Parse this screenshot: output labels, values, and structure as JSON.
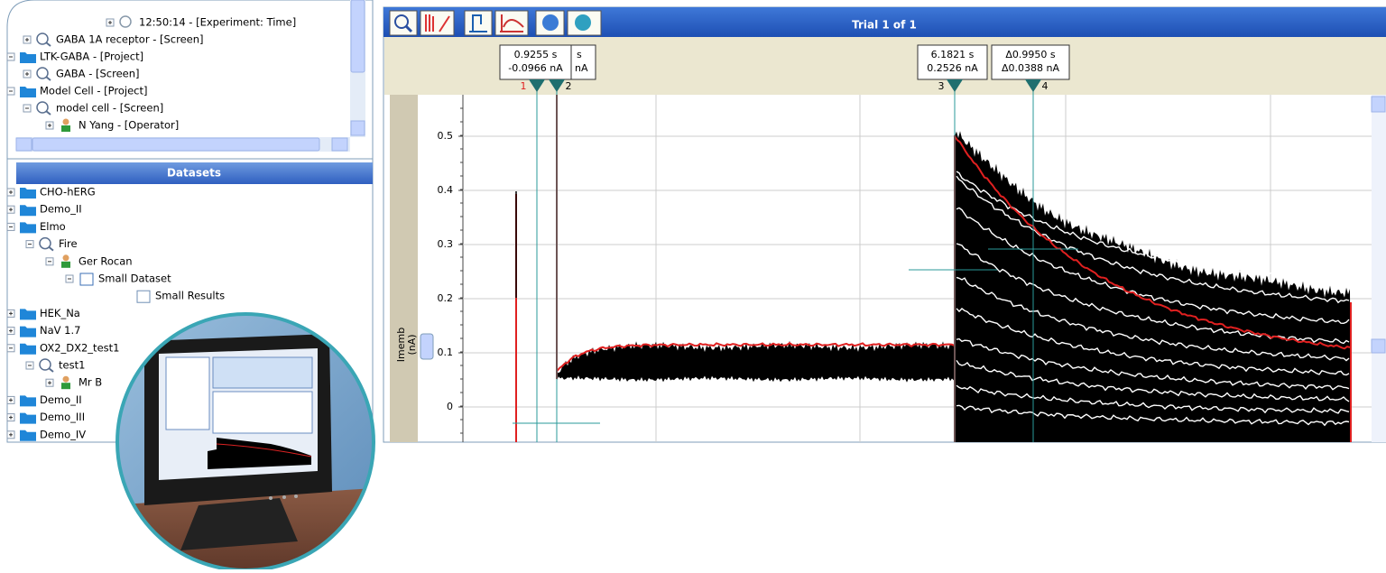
{
  "explorer": {
    "rows": [
      "12:50:14 - [Experiment: Time]",
      "GABA 1A receptor - [Screen]",
      "LTK-GABA - [Project]",
      "GABA - [Screen]",
      "Model Cell - [Project]",
      "model cell - [Screen]",
      "N Yang - [Operator]"
    ]
  },
  "datasets": {
    "title": "Datasets",
    "rows": [
      "CHO-hERG",
      "Demo_II",
      "Elmo",
      "Fire",
      "Ger Rocan",
      "Small Dataset",
      "Small Results",
      "HEK_Na",
      "NaV 1.7",
      "OX2_DX2_test1",
      "test1",
      "Mr B",
      "Demo_II",
      "Demo_III",
      "Demo_IV"
    ]
  },
  "plot": {
    "title": "Trial 1 of 1",
    "ylabel": "Imemb",
    "yunit": "(nA)",
    "yticks": [
      0.5,
      0.4,
      0.3,
      0.2,
      0.1,
      0
    ],
    "cursors": [
      {
        "number": "1",
        "time": "0.9255 s",
        "current": "-0.0966 nA"
      },
      {
        "number": "2",
        "time": "s",
        "current": "nA"
      },
      {
        "number": "3",
        "time": "6.1821 s",
        "current": "0.2526 nA"
      },
      {
        "number": "4",
        "time": "Δ0.9950 s",
        "current": "Δ0.0388 nA"
      }
    ]
  }
}
